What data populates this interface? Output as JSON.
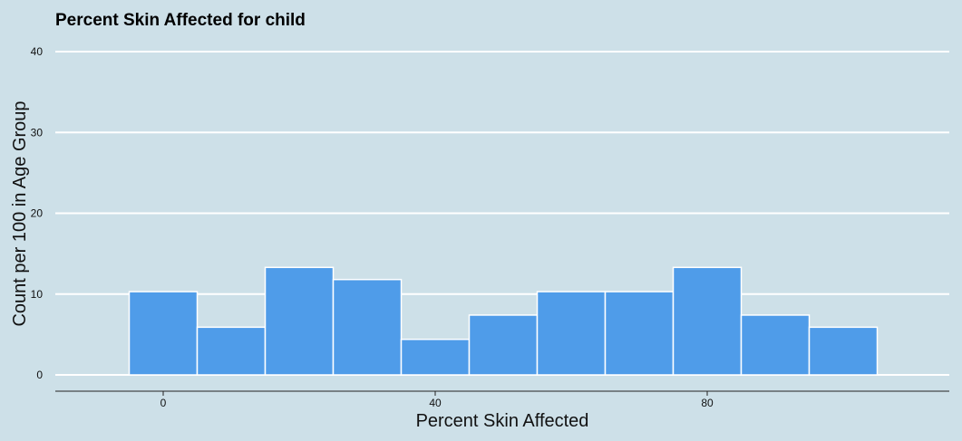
{
  "chart_data": {
    "type": "bar",
    "title": "Percent Skin Affected for child",
    "xlabel": "Percent Skin Affected",
    "ylabel": "Count per 100 in Age Group",
    "bin_width": 10,
    "bin_centers": [
      0,
      10,
      20,
      30,
      40,
      50,
      60,
      70,
      80,
      90,
      100
    ],
    "values": [
      10.3,
      5.9,
      13.3,
      11.8,
      4.4,
      7.4,
      10.3,
      10.3,
      13.3,
      7.4,
      5.9
    ],
    "xticks": [
      0,
      40,
      80
    ],
    "yticks": [
      0,
      10,
      20,
      30,
      40
    ],
    "xlim": [
      -15,
      116
    ],
    "ylim": [
      0,
      40
    ],
    "grid": "horizontal",
    "bar_color": "#4f9ce9",
    "bar_edge_color": "#ffffff",
    "background_color": "#cde0e8"
  }
}
